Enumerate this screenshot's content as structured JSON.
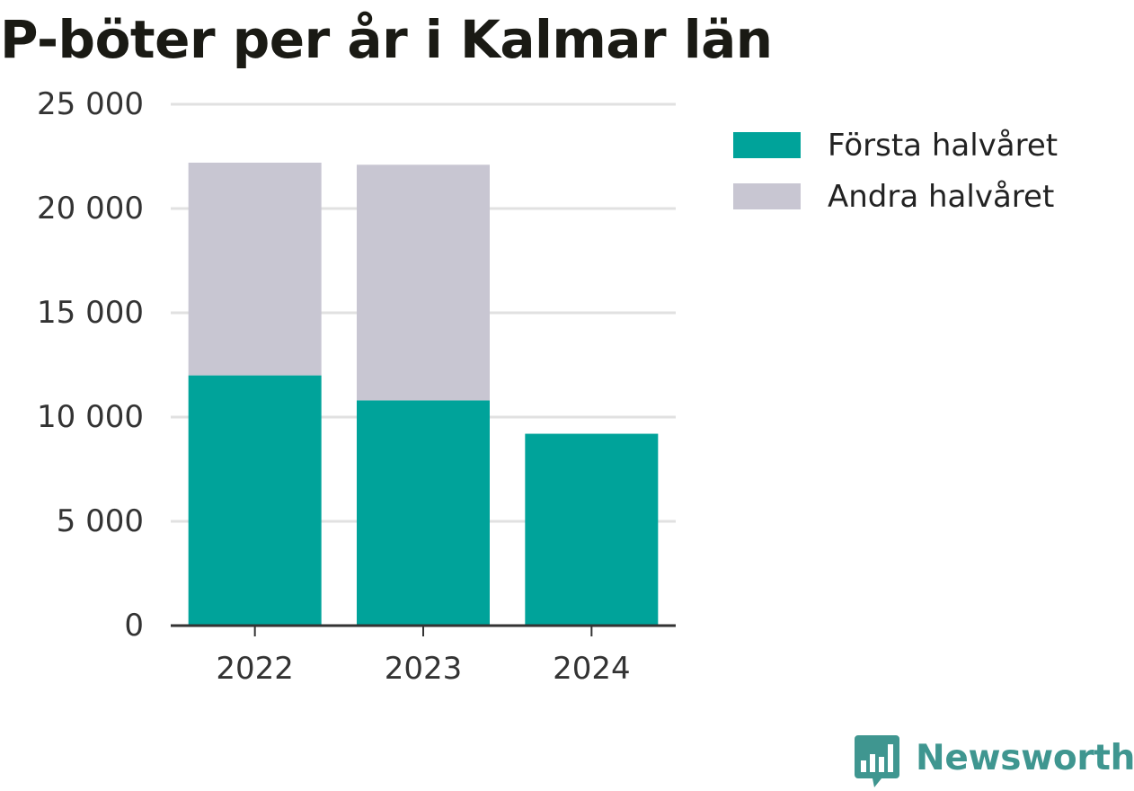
{
  "chart_data": {
    "type": "bar",
    "stacked": true,
    "title": "P-böter per år i Kalmar län",
    "categories": [
      "2022",
      "2023",
      "2024"
    ],
    "series": [
      {
        "name": "Första halvåret",
        "values": [
          12000,
          10800,
          9200
        ],
        "color": "#00a39a"
      },
      {
        "name": "Andra halvåret",
        "values": [
          10200,
          11300,
          null
        ],
        "color": "#c8c6d2"
      }
    ],
    "ylim": [
      0,
      25000
    ],
    "y_ticks": [
      0,
      5000,
      10000,
      15000,
      20000,
      25000
    ],
    "y_tick_labels": [
      "0",
      "5 000",
      "10 000",
      "15 000",
      "20 000",
      "25 000"
    ],
    "xlabel": "",
    "ylabel": "",
    "grid": true,
    "legend_position": "right"
  },
  "branding": {
    "logo_text": "Newsworthy",
    "logo_icon": "newsworthy-chart-icon",
    "color": "#3f9690"
  }
}
